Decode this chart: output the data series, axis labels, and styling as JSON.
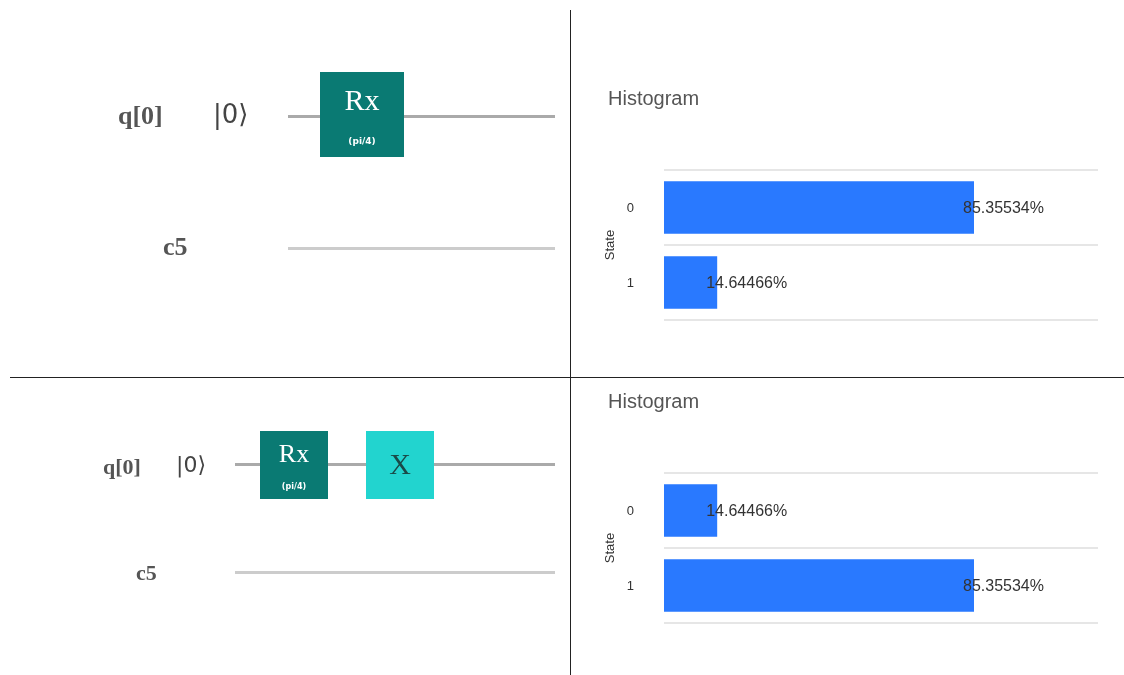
{
  "chart_data": [
    {
      "type": "other",
      "annotations": [
        "q[0]",
        "|0⟩",
        "Rx",
        "(pi/4)",
        "c5"
      ]
    },
    {
      "type": "bar",
      "orientation": "horizontal",
      "title": "Histogram",
      "ylabel": "State",
      "categories": [
        "0",
        "1"
      ],
      "values": [
        85.35534,
        14.64466
      ],
      "value_labels": [
        "85.35534%",
        "14.64466%"
      ],
      "color": "#2979ff",
      "grid": "y"
    },
    {
      "type": "other",
      "annotations": [
        "q[0]",
        "|0⟩",
        "Rx",
        "(pi/4)",
        "X",
        "c5"
      ]
    },
    {
      "type": "bar",
      "orientation": "horizontal",
      "title": "Histogram",
      "ylabel": "State",
      "categories": [
        "0",
        "1"
      ],
      "values": [
        14.64466,
        85.35534
      ],
      "value_labels": [
        "14.64466%",
        "85.35534%"
      ],
      "color": "#2979ff",
      "grid": "y"
    }
  ]
}
